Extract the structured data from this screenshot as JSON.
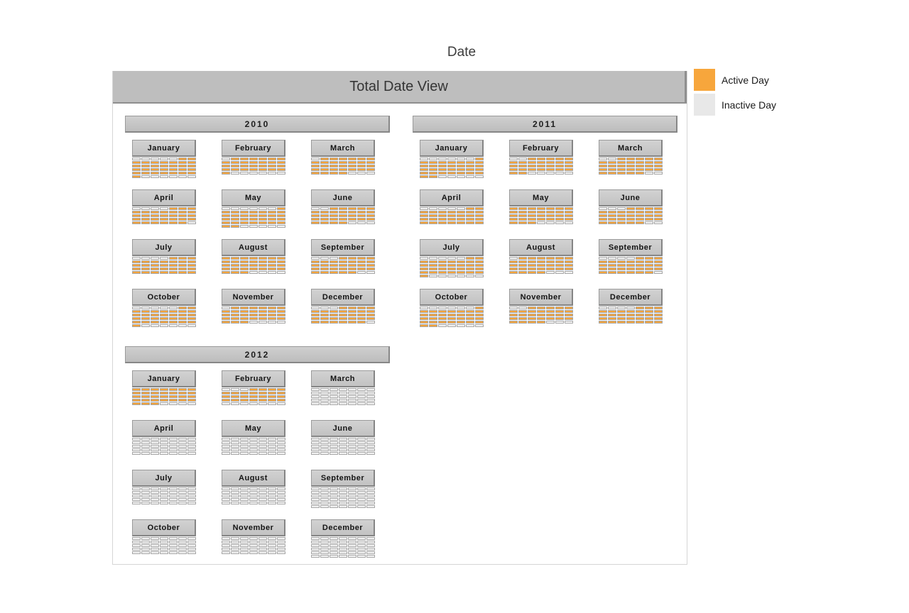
{
  "title": "Date",
  "view": {
    "title": "Total Date View"
  },
  "legend": {
    "items": [
      {
        "name": "active-day",
        "label": "Active Day",
        "color": "#F7A63C"
      },
      {
        "name": "inactive-day",
        "label": "Inactive Day",
        "color": "#E8E8E8"
      }
    ]
  },
  "chart_data": {
    "type": "calendar",
    "title": "Date",
    "view_title": "Total Date View",
    "week_start": "Sunday",
    "columns_per_week": 7,
    "colors": {
      "active_cell": "#F7A63C",
      "empty_cell": "#F4F4F4",
      "cell_border": "#A6A6A6"
    },
    "years": [
      {
        "year": "2010",
        "months": [
          {
            "name": "January",
            "first_weekday": 5,
            "days": 31,
            "active_through": 31
          },
          {
            "name": "February",
            "first_weekday": 1,
            "days": 28,
            "active_through": 28
          },
          {
            "name": "March",
            "first_weekday": 1,
            "days": 31,
            "active_through": 31
          },
          {
            "name": "April",
            "first_weekday": 4,
            "days": 30,
            "active_through": 30
          },
          {
            "name": "May",
            "first_weekday": 6,
            "days": 31,
            "active_through": 31
          },
          {
            "name": "June",
            "first_weekday": 2,
            "days": 30,
            "active_through": 30
          },
          {
            "name": "July",
            "first_weekday": 4,
            "days": 31,
            "active_through": 31
          },
          {
            "name": "August",
            "first_weekday": 0,
            "days": 31,
            "active_through": 31
          },
          {
            "name": "September",
            "first_weekday": 3,
            "days": 30,
            "active_through": 30
          },
          {
            "name": "October",
            "first_weekday": 5,
            "days": 31,
            "active_through": 31
          },
          {
            "name": "November",
            "first_weekday": 1,
            "days": 30,
            "active_through": 30
          },
          {
            "name": "December",
            "first_weekday": 3,
            "days": 31,
            "active_through": 31
          }
        ]
      },
      {
        "year": "2011",
        "months": [
          {
            "name": "January",
            "first_weekday": 6,
            "days": 31,
            "active_through": 31
          },
          {
            "name": "February",
            "first_weekday": 2,
            "days": 28,
            "active_through": 28
          },
          {
            "name": "March",
            "first_weekday": 2,
            "days": 31,
            "active_through": 31
          },
          {
            "name": "April",
            "first_weekday": 5,
            "days": 30,
            "active_through": 30
          },
          {
            "name": "May",
            "first_weekday": 0,
            "days": 31,
            "active_through": 31
          },
          {
            "name": "June",
            "first_weekday": 3,
            "days": 30,
            "active_through": 30
          },
          {
            "name": "July",
            "first_weekday": 5,
            "days": 31,
            "active_through": 31
          },
          {
            "name": "August",
            "first_weekday": 1,
            "days": 31,
            "active_through": 31
          },
          {
            "name": "September",
            "first_weekday": 4,
            "days": 30,
            "active_through": 30
          },
          {
            "name": "October",
            "first_weekday": 6,
            "days": 31,
            "active_through": 31
          },
          {
            "name": "November",
            "first_weekday": 2,
            "days": 30,
            "active_through": 30
          },
          {
            "name": "December",
            "first_weekday": 4,
            "days": 31,
            "active_through": 31
          }
        ]
      },
      {
        "year": "2012",
        "months": [
          {
            "name": "January",
            "first_weekday": 0,
            "days": 31,
            "active_through": 31
          },
          {
            "name": "February",
            "first_weekday": 3,
            "days": 29,
            "active_through": 25
          },
          {
            "name": "March",
            "first_weekday": 4,
            "days": 31,
            "active_through": 0
          },
          {
            "name": "April",
            "first_weekday": 0,
            "days": 30,
            "active_through": 0
          },
          {
            "name": "May",
            "first_weekday": 2,
            "days": 31,
            "active_through": 0
          },
          {
            "name": "June",
            "first_weekday": 5,
            "days": 30,
            "active_through": 0
          },
          {
            "name": "July",
            "first_weekday": 0,
            "days": 31,
            "active_through": 0
          },
          {
            "name": "August",
            "first_weekday": 3,
            "days": 31,
            "active_through": 0
          },
          {
            "name": "September",
            "first_weekday": 6,
            "days": 30,
            "active_through": 0
          },
          {
            "name": "October",
            "first_weekday": 1,
            "days": 31,
            "active_through": 0
          },
          {
            "name": "November",
            "first_weekday": 4,
            "days": 30,
            "active_through": 0
          },
          {
            "name": "December",
            "first_weekday": 6,
            "days": 31,
            "active_through": 0
          }
        ]
      }
    ]
  }
}
